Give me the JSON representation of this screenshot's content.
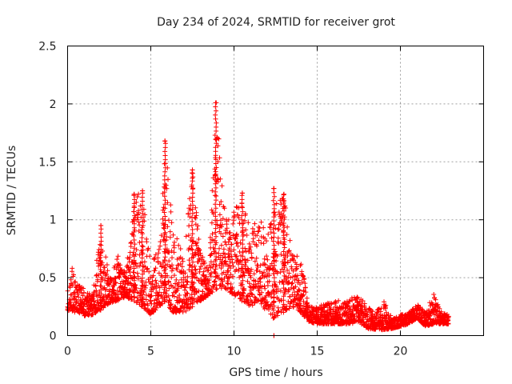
{
  "chart_data": {
    "type": "scatter",
    "title": "Day 234 of 2024, SRMTID for receiver grot",
    "xlabel": "GPS time / hours",
    "ylabel": "SRMTID / TECUs",
    "xlim": [
      0,
      25
    ],
    "ylim": [
      0,
      2.5
    ],
    "x_ticks": [
      0,
      5,
      10,
      15,
      20
    ],
    "x_tick_labels": [
      "0",
      "5",
      "10",
      "15",
      "20"
    ],
    "y_ticks": [
      0,
      0.5,
      1,
      1.5,
      2,
      2.5
    ],
    "y_tick_labels": [
      "0",
      "0.5",
      "1",
      "1.5",
      "2",
      "2.5"
    ],
    "grid": true,
    "marker": "plus",
    "color": "#ff0000",
    "envelope": {
      "description": "approximate lower/upper bounds of the point cloud vs GPS time (hours)",
      "points": [
        [
          0.0,
          0.22,
          0.4
        ],
        [
          0.3,
          0.2,
          0.6
        ],
        [
          0.6,
          0.2,
          0.45
        ],
        [
          1.0,
          0.17,
          0.4
        ],
        [
          1.5,
          0.18,
          0.35
        ],
        [
          2.0,
          0.22,
          0.95
        ],
        [
          2.5,
          0.28,
          0.5
        ],
        [
          3.0,
          0.3,
          0.7
        ],
        [
          3.5,
          0.33,
          0.55
        ],
        [
          4.0,
          0.3,
          1.22
        ],
        [
          4.5,
          0.25,
          1.25
        ],
        [
          5.0,
          0.18,
          0.6
        ],
        [
          5.5,
          0.25,
          0.8
        ],
        [
          5.9,
          0.3,
          1.68
        ],
        [
          6.3,
          0.2,
          0.95
        ],
        [
          7.0,
          0.2,
          0.7
        ],
        [
          7.5,
          0.25,
          1.43
        ],
        [
          8.0,
          0.3,
          0.7
        ],
        [
          8.5,
          0.35,
          0.6
        ],
        [
          8.9,
          0.4,
          2.01
        ],
        [
          9.5,
          0.4,
          1.0
        ],
        [
          10.0,
          0.35,
          1.1
        ],
        [
          10.5,
          0.3,
          1.23
        ],
        [
          11.0,
          0.25,
          0.9
        ],
        [
          11.5,
          0.3,
          1.05
        ],
        [
          12.0,
          0.2,
          0.85
        ],
        [
          12.4,
          0.15,
          1.27
        ],
        [
          13.0,
          0.2,
          1.22
        ],
        [
          13.5,
          0.25,
          0.7
        ],
        [
          14.0,
          0.2,
          0.7
        ],
        [
          14.5,
          0.12,
          0.25
        ],
        [
          15.0,
          0.1,
          0.25
        ],
        [
          16.0,
          0.1,
          0.3
        ],
        [
          17.0,
          0.1,
          0.32
        ],
        [
          17.5,
          0.12,
          0.35
        ],
        [
          18.0,
          0.06,
          0.25
        ],
        [
          18.5,
          0.05,
          0.22
        ],
        [
          19.0,
          0.05,
          0.3
        ],
        [
          19.5,
          0.06,
          0.15
        ],
        [
          20.0,
          0.08,
          0.18
        ],
        [
          20.5,
          0.1,
          0.2
        ],
        [
          21.0,
          0.15,
          0.28
        ],
        [
          21.5,
          0.08,
          0.2
        ],
        [
          22.0,
          0.1,
          0.36
        ],
        [
          22.5,
          0.1,
          0.2
        ],
        [
          22.9,
          0.1,
          0.18
        ]
      ]
    },
    "spikes": [
      {
        "x": 5.85,
        "y": 1.68
      },
      {
        "x": 8.9,
        "y": 2.01
      },
      {
        "x": 7.5,
        "y": 1.43
      },
      {
        "x": 4.0,
        "y": 1.22
      },
      {
        "x": 4.5,
        "y": 1.25
      },
      {
        "x": 12.4,
        "y": 1.27
      },
      {
        "x": 13.0,
        "y": 1.22
      },
      {
        "x": 10.5,
        "y": 1.23
      },
      {
        "x": 2.0,
        "y": 0.95
      },
      {
        "x": 12.4,
        "y": 0.0
      }
    ]
  }
}
